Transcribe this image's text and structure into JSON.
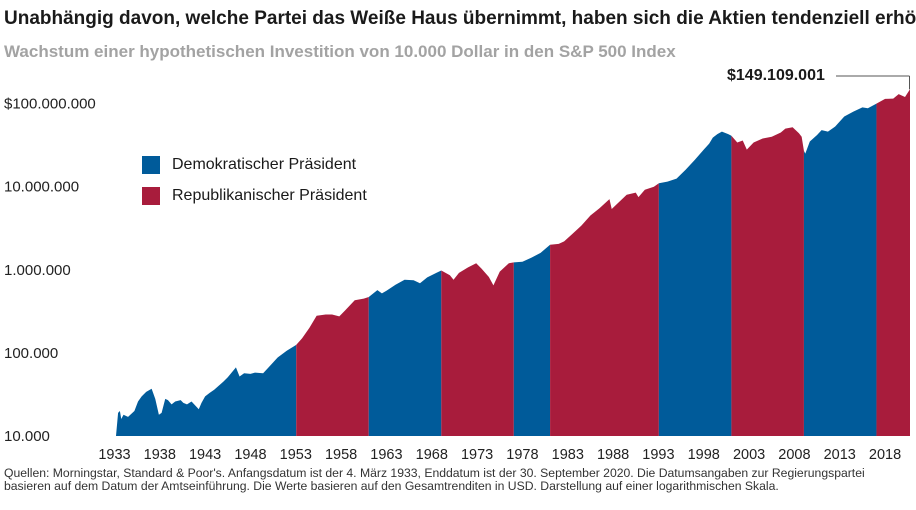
{
  "title": "Unabhängig davon, welche Partei das Weiße Haus übernimmt, haben sich die Aktien tendenziell erhöht",
  "subtitle": "Wachstum einer hypothetischen Investition von 10.000 Dollar in den S&P 500 Index",
  "final_value_label": "$149.109.001",
  "source_note": "Quellen: Morningstar, Standard & Poor's. Anfangsdatum ist der 4. März 1933, Enddatum ist der 30. September 2020. Die Datumsangaben zur Regierungspartei basieren auf dem Datum der Amtseinführung. Die Werte basieren auf den Gesamtrenditen in USD. Darstellung auf einer logarithmischen Skala.",
  "colors": {
    "democratic": "#005b9a",
    "republican": "#a81c3c",
    "leader_line": "#555555"
  },
  "chart_data": {
    "type": "area",
    "title": "Wachstum einer hypothetischen Investition von 10.000 Dollar in den S&P 500 Index",
    "xlabel": "",
    "ylabel": "",
    "y_scale": "log",
    "ylim": [
      10000,
      150000000
    ],
    "xlim": [
      1933.17,
      2020.75
    ],
    "y_ticks": [
      10000,
      100000,
      1000000,
      10000000,
      100000000
    ],
    "y_tick_labels": [
      "10.000",
      "100.000",
      "1.000.000",
      "10.000.000",
      "$100.000.000"
    ],
    "x_ticks": [
      1933,
      1938,
      1943,
      1948,
      1953,
      1958,
      1963,
      1968,
      1973,
      1978,
      1983,
      1988,
      1993,
      1998,
      2003,
      2008,
      2013,
      2018
    ],
    "x_tick_labels": [
      "1933",
      "1938",
      "1943",
      "1948",
      "1953",
      "1958",
      "1963",
      "1968",
      "1973",
      "1978",
      "1983",
      "1988",
      "1993",
      "1998",
      "2003",
      "2008",
      "2013",
      "2018"
    ],
    "legend": [
      {
        "key": "democratic",
        "label": "Demokratischer Präsident"
      },
      {
        "key": "republican",
        "label": "Republikanischer Präsident"
      }
    ],
    "legend_position": "upper-left",
    "grid": false,
    "annotations": [
      {
        "x": 2020.75,
        "y": 149109001,
        "text": "$149.109.001"
      }
    ],
    "periods": [
      {
        "party": "democratic",
        "start": 1933.17,
        "end": 1953.05
      },
      {
        "party": "republican",
        "start": 1953.05,
        "end": 1961.05
      },
      {
        "party": "democratic",
        "start": 1961.05,
        "end": 1969.05
      },
      {
        "party": "republican",
        "start": 1969.05,
        "end": 1977.05
      },
      {
        "party": "democratic",
        "start": 1977.05,
        "end": 1981.05
      },
      {
        "party": "republican",
        "start": 1981.05,
        "end": 1993.05
      },
      {
        "party": "democratic",
        "start": 1993.05,
        "end": 2001.05
      },
      {
        "party": "republican",
        "start": 2001.05,
        "end": 2009.05
      },
      {
        "party": "democratic",
        "start": 2009.05,
        "end": 2017.05
      },
      {
        "party": "republican",
        "start": 2017.05,
        "end": 2020.75
      }
    ],
    "series": [
      {
        "x": [
          1933.17,
          1933.4,
          1933.6,
          1933.75,
          1934.0,
          1934.5,
          1935.2,
          1935.6,
          1936.0,
          1936.5,
          1937.1,
          1937.5,
          1937.9,
          1938.2,
          1938.6,
          1938.9,
          1939.3,
          1939.7,
          1940.3,
          1940.6,
          1941.0,
          1941.5,
          1942.3,
          1942.6,
          1943.0,
          1943.5,
          1944.0,
          1945.0,
          1945.5,
          1946.4,
          1946.8,
          1947.3,
          1948.0,
          1948.5,
          1949.4,
          1950.0,
          1951.0,
          1952.0,
          1953.05,
          1953.7,
          1954.5,
          1955.3,
          1956.3,
          1957.0,
          1957.8,
          1958.5,
          1959.5,
          1960.5,
          1961.05,
          1962.0,
          1962.5,
          1963.0,
          1964.0,
          1965.0,
          1966.0,
          1966.7,
          1967.5,
          1968.5,
          1969.05,
          1970.0,
          1970.4,
          1971.0,
          1972.0,
          1972.9,
          1973.5,
          1974.3,
          1974.8,
          1975.5,
          1976.5,
          1977.05,
          1978.0,
          1979.0,
          1980.0,
          1981.05,
          1982.0,
          1982.6,
          1983.5,
          1984.5,
          1985.5,
          1986.5,
          1987.6,
          1987.85,
          1988.5,
          1989.5,
          1990.5,
          1990.8,
          1991.5,
          1992.5,
          1993.05,
          1994.0,
          1995.0,
          1996.0,
          1997.0,
          1998.0,
          1998.6,
          1999.0,
          1999.5,
          2000.0,
          2000.7,
          2001.05,
          2001.7,
          2002.3,
          2002.75,
          2003.5,
          2004.5,
          2005.5,
          2006.5,
          2007.0,
          2007.8,
          2008.5,
          2008.8,
          2009.05,
          2009.2,
          2009.7,
          2010.5,
          2011.0,
          2011.7,
          2012.5,
          2013.5,
          2014.5,
          2015.5,
          2016.1,
          2017.05,
          2018.0,
          2018.9,
          2019.5,
          2020.2,
          2020.75
        ],
        "y": [
          10000,
          19000,
          20000,
          16000,
          18000,
          17000,
          20000,
          26000,
          30000,
          34000,
          37000,
          28000,
          18000,
          19000,
          28000,
          27000,
          24000,
          26000,
          27000,
          25000,
          24000,
          26000,
          21000,
          25000,
          30000,
          33000,
          36000,
          45000,
          51000,
          67000,
          52000,
          57000,
          56000,
          58000,
          57000,
          67000,
          88000,
          106000,
          125000,
          150000,
          200000,
          280000,
          290000,
          290000,
          275000,
          330000,
          430000,
          450000,
          470000,
          570000,
          520000,
          560000,
          660000,
          760000,
          750000,
          690000,
          810000,
          920000,
          980000,
          860000,
          760000,
          920000,
          1070000,
          1200000,
          1030000,
          820000,
          650000,
          950000,
          1200000,
          1230000,
          1250000,
          1400000,
          1600000,
          2000000,
          2050000,
          2200000,
          2700000,
          3400000,
          4500000,
          5500000,
          7100000,
          5400000,
          6300000,
          8000000,
          8500000,
          7500000,
          9200000,
          10000000,
          11000000,
          11500000,
          12500000,
          16000000,
          21000000,
          28000000,
          33000000,
          39000000,
          43000000,
          46000000,
          43000000,
          41000000,
          34000000,
          36000000,
          28000000,
          34000000,
          38000000,
          40000000,
          45000000,
          50000000,
          52000000,
          44000000,
          40000000,
          27000000,
          25000000,
          35000000,
          42000000,
          48000000,
          46000000,
          53000000,
          70000000,
          80000000,
          90000000,
          88000000,
          100000000,
          114000000,
          115000000,
          130000000,
          120000000,
          149109001
        ]
      }
    ]
  }
}
